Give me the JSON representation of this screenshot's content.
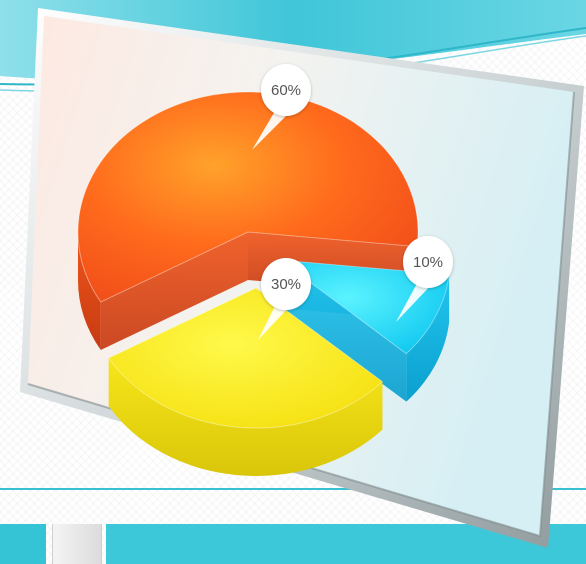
{
  "chart_data": {
    "type": "pie",
    "title": "",
    "slices": [
      {
        "label": "60%",
        "value": 60,
        "color": "#ff5a1a"
      },
      {
        "label": "10%",
        "value": 10,
        "color": "#18cdf5"
      },
      {
        "label": "30%",
        "value": 30,
        "color": "#ffe81a"
      }
    ]
  },
  "colors": {
    "accent_teal": "#35c4d6",
    "panel_left": "#fbe9e2",
    "panel_right": "#d8f1f6"
  }
}
